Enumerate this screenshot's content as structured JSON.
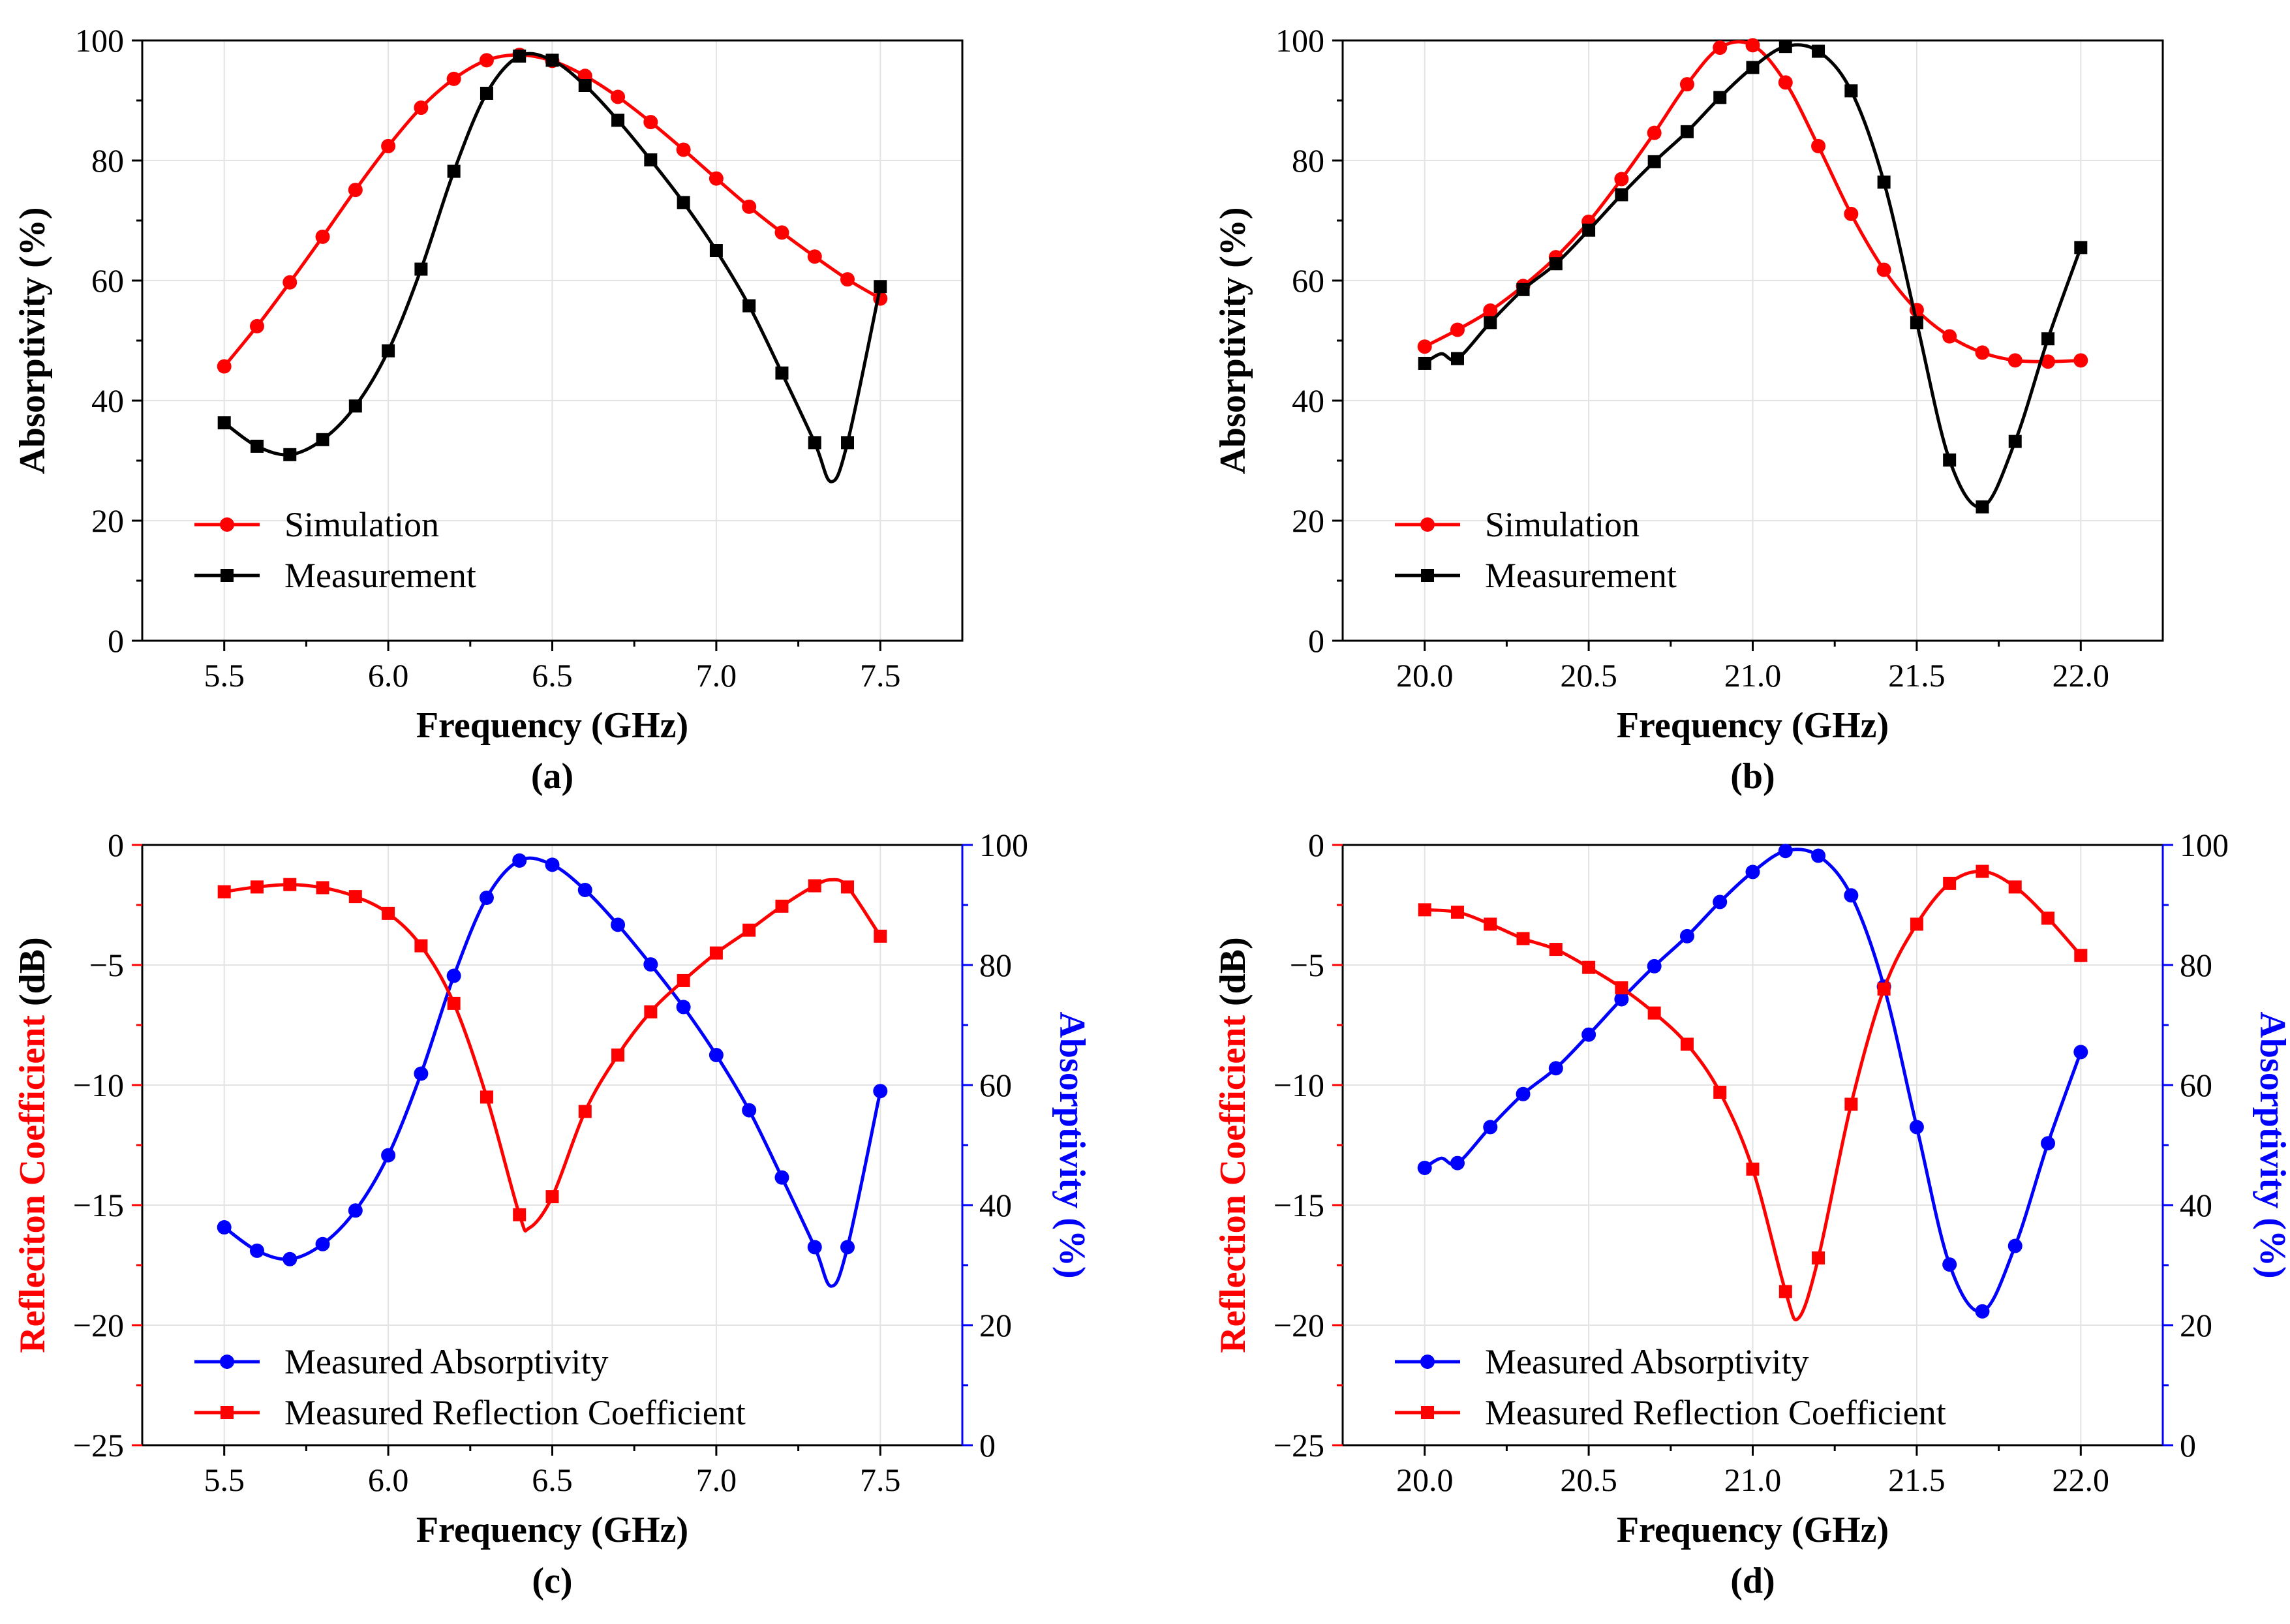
{
  "colors": {
    "red": "#ff0000",
    "black": "#000000",
    "blue": "#0000ff"
  },
  "chart_data": [
    {
      "type": "line",
      "caption": "(a)",
      "xlabel": "Frequency (GHz)",
      "ylabel": "Absorptivity (%)",
      "xlim": [
        5.25,
        7.75
      ],
      "ylim": [
        0,
        100
      ],
      "xticks": [
        5.5,
        6.0,
        6.5,
        7.0,
        7.5
      ],
      "xticklabels": [
        "5.5",
        "6.0",
        "6.5",
        "7.0",
        "7.5"
      ],
      "yticks": [
        0,
        20,
        40,
        60,
        80,
        100
      ],
      "yticklabels": [
        "0",
        "20",
        "40",
        "60",
        "80",
        "100"
      ],
      "grid": true,
      "legend": "bottom-left",
      "series": [
        {
          "name": "Simulation",
          "color": "#ff0000",
          "marker": "circle",
          "x": [
            5.5,
            5.6,
            5.7,
            5.8,
            5.9,
            6.0,
            6.1,
            6.2,
            6.3,
            6.4,
            6.5,
            6.6,
            6.7,
            6.8,
            6.9,
            7.0,
            7.1,
            7.2,
            7.3,
            7.4,
            7.5
          ],
          "y": [
            45.7,
            52.4,
            59.7,
            67.3,
            75.1,
            82.4,
            88.8,
            93.6,
            96.7,
            97.6,
            96.6,
            94.1,
            90.6,
            86.4,
            81.8,
            77.0,
            72.3,
            68.0,
            64.0,
            60.2,
            57.0
          ]
        },
        {
          "name": "Measurement",
          "color": "#000000",
          "marker": "square",
          "x": [
            5.5,
            5.6,
            5.7,
            5.8,
            5.9,
            6.0,
            6.1,
            6.2,
            6.3,
            6.4,
            6.5,
            6.6,
            6.7,
            6.8,
            6.9,
            7.0,
            7.1,
            7.2,
            7.3,
            7.35,
            7.4,
            7.5
          ],
          "y": [
            36.3,
            32.4,
            31.0,
            33.5,
            39.1,
            48.3,
            61.9,
            78.2,
            91.2,
            97.4,
            96.7,
            92.5,
            86.7,
            80.1,
            73.0,
            65.0,
            55.8,
            44.6,
            33.0,
            26.5,
            33.0,
            59.0
          ],
          "marked": [
            true,
            true,
            true,
            true,
            true,
            true,
            true,
            true,
            true,
            true,
            true,
            true,
            true,
            true,
            true,
            true,
            true,
            true,
            true,
            false,
            true,
            true
          ]
        }
      ]
    },
    {
      "type": "line",
      "caption": "(b)",
      "xlabel": "Frequency (GHz)",
      "ylabel": "Absorptivity (%)",
      "xlim": [
        19.75,
        22.25
      ],
      "ylim": [
        0,
        100
      ],
      "xticks": [
        20.0,
        20.5,
        21.0,
        21.5,
        22.0
      ],
      "xticklabels": [
        "20.0",
        "20.5",
        "21.0",
        "21.5",
        "22.0"
      ],
      "yticks": [
        0,
        20,
        40,
        60,
        80,
        100
      ],
      "yticklabels": [
        "0",
        "20",
        "40",
        "60",
        "80",
        "100"
      ],
      "grid": true,
      "legend": "bottom-left",
      "series": [
        {
          "name": "Simulation",
          "color": "#ff0000",
          "marker": "circle",
          "x": [
            20.0,
            20.1,
            20.2,
            20.3,
            20.4,
            20.5,
            20.6,
            20.7,
            20.8,
            20.9,
            21.0,
            21.1,
            21.2,
            21.3,
            21.4,
            21.5,
            21.6,
            21.7,
            21.8,
            21.9,
            22.0
          ],
          "y": [
            49.0,
            51.8,
            55.0,
            59.1,
            63.9,
            69.8,
            76.9,
            84.6,
            92.7,
            98.8,
            99.2,
            93.0,
            82.4,
            71.1,
            61.8,
            55.1,
            50.7,
            48.0,
            46.7,
            46.5,
            46.7
          ]
        },
        {
          "name": "Measurement",
          "color": "#000000",
          "marker": "square",
          "x": [
            20.0,
            20.05,
            20.1,
            20.2,
            20.3,
            20.4,
            20.5,
            20.6,
            20.7,
            20.8,
            20.9,
            21.0,
            21.1,
            21.2,
            21.3,
            21.4,
            21.5,
            21.6,
            21.7,
            21.8,
            21.9,
            22.0
          ],
          "y": [
            46.2,
            47.8,
            47.0,
            53.0,
            58.5,
            62.8,
            68.4,
            74.3,
            79.8,
            84.8,
            90.5,
            95.5,
            99.0,
            98.2,
            91.6,
            76.4,
            53.0,
            30.1,
            22.3,
            33.2,
            50.3,
            65.5
          ],
          "marked": [
            true,
            false,
            true,
            true,
            true,
            true,
            true,
            true,
            true,
            true,
            true,
            true,
            true,
            true,
            true,
            true,
            true,
            true,
            true,
            true,
            true,
            true
          ]
        }
      ]
    },
    {
      "type": "line",
      "caption": "(c)",
      "xlabel": "Frequency (GHz)",
      "ylabel_parts": [
        {
          "text": "Refleciton Coefficient",
          "color": "#ff0000"
        },
        {
          "text": " (dB)",
          "color": "#000000"
        }
      ],
      "ylabel_right_parts": [
        {
          "text": "Absorptivity",
          "color": "#0000ff"
        },
        {
          "text": " (%)",
          "color": "#0000ff"
        }
      ],
      "xlim": [
        5.25,
        7.75
      ],
      "ylim": [
        -25,
        0
      ],
      "ylim_right": [
        0,
        100
      ],
      "xticks": [
        5.5,
        6.0,
        6.5,
        7.0,
        7.5
      ],
      "xticklabels": [
        "5.5",
        "6.0",
        "6.5",
        "7.0",
        "7.5"
      ],
      "yticks": [
        -25,
        -20,
        -15,
        -10,
        -5,
        0
      ],
      "yticklabels": [
        "−25",
        "−20",
        "−15",
        "−10",
        "−5",
        "0"
      ],
      "yticks_right": [
        0,
        20,
        40,
        60,
        80,
        100
      ],
      "yticklabels_right": [
        "0",
        "20",
        "40",
        "60",
        "80",
        "100"
      ],
      "grid": true,
      "legend": "bottom-left",
      "series": [
        {
          "name": "Measured Absorptivity",
          "color": "#0000ff",
          "marker": "circle",
          "axis": "right",
          "x": [
            5.5,
            5.6,
            5.7,
            5.8,
            5.9,
            6.0,
            6.1,
            6.2,
            6.3,
            6.4,
            6.5,
            6.6,
            6.7,
            6.8,
            6.9,
            7.0,
            7.1,
            7.2,
            7.3,
            7.35,
            7.4,
            7.5
          ],
          "y": [
            36.3,
            32.4,
            31.0,
            33.5,
            39.1,
            48.3,
            61.9,
            78.2,
            91.2,
            97.4,
            96.7,
            92.5,
            86.7,
            80.1,
            73.0,
            65.0,
            55.8,
            44.6,
            33.0,
            26.5,
            33.0,
            59.0
          ],
          "marked": [
            true,
            true,
            true,
            true,
            true,
            true,
            true,
            true,
            true,
            true,
            true,
            true,
            true,
            true,
            true,
            true,
            true,
            true,
            true,
            false,
            true,
            true
          ]
        },
        {
          "name": "Measured Reflection Coefficient",
          "color": "#ff0000",
          "marker": "square",
          "axis": "left",
          "x": [
            5.5,
            5.6,
            5.7,
            5.8,
            5.9,
            6.0,
            6.1,
            6.2,
            6.3,
            6.4,
            6.43,
            6.5,
            6.6,
            6.7,
            6.8,
            6.9,
            7.0,
            7.1,
            7.2,
            7.3,
            7.35,
            7.4,
            7.5
          ],
          "y": [
            -1.95,
            -1.75,
            -1.65,
            -1.78,
            -2.15,
            -2.85,
            -4.2,
            -6.6,
            -10.5,
            -15.4,
            -15.95,
            -14.65,
            -11.1,
            -8.75,
            -6.95,
            -5.65,
            -4.5,
            -3.55,
            -2.55,
            -1.7,
            -1.45,
            -1.75,
            -3.8
          ],
          "marked": [
            true,
            true,
            true,
            true,
            true,
            true,
            true,
            true,
            true,
            true,
            false,
            true,
            true,
            true,
            true,
            true,
            true,
            true,
            true,
            true,
            false,
            true,
            true
          ]
        }
      ]
    },
    {
      "type": "line",
      "caption": "(d)",
      "xlabel": "Frequency (GHz)",
      "ylabel_parts": [
        {
          "text": "Reflection Coefficient",
          "color": "#ff0000"
        },
        {
          "text": " (dB)",
          "color": "#000000"
        }
      ],
      "ylabel_right_parts": [
        {
          "text": "Absorptivity",
          "color": "#0000ff"
        },
        {
          "text": " (%)",
          "color": "#0000ff"
        }
      ],
      "xlim": [
        19.75,
        22.25
      ],
      "ylim": [
        -25,
        0
      ],
      "ylim_right": [
        0,
        100
      ],
      "xticks": [
        20.0,
        20.5,
        21.0,
        21.5,
        22.0
      ],
      "xticklabels": [
        "20.0",
        "20.5",
        "21.0",
        "21.5",
        "22.0"
      ],
      "yticks": [
        -25,
        -20,
        -15,
        -10,
        -5,
        0
      ],
      "yticklabels": [
        "−25",
        "−20",
        "−15",
        "−10",
        "−5",
        "0"
      ],
      "yticks_right": [
        0,
        20,
        40,
        60,
        80,
        100
      ],
      "yticklabels_right": [
        "0",
        "20",
        "40",
        "60",
        "80",
        "100"
      ],
      "grid": true,
      "legend": "bottom-left",
      "series": [
        {
          "name": "Measured Absorptivity",
          "color": "#0000ff",
          "marker": "circle",
          "axis": "right",
          "x": [
            20.0,
            20.05,
            20.1,
            20.2,
            20.3,
            20.4,
            20.5,
            20.6,
            20.7,
            20.8,
            20.9,
            21.0,
            21.1,
            21.2,
            21.3,
            21.4,
            21.5,
            21.6,
            21.7,
            21.8,
            21.9,
            22.0
          ],
          "y": [
            46.2,
            47.8,
            47.0,
            53.0,
            58.5,
            62.8,
            68.4,
            74.3,
            79.8,
            84.8,
            90.5,
            95.5,
            99.0,
            98.2,
            91.6,
            76.4,
            53.0,
            30.1,
            22.3,
            33.2,
            50.3,
            65.5
          ],
          "marked": [
            true,
            false,
            true,
            true,
            true,
            true,
            true,
            true,
            true,
            true,
            true,
            true,
            true,
            true,
            true,
            true,
            true,
            true,
            true,
            true,
            true,
            true
          ]
        },
        {
          "name": "Measured Reflection Coefficient",
          "color": "#ff0000",
          "marker": "square",
          "axis": "left",
          "x": [
            20.0,
            20.1,
            20.2,
            20.3,
            20.4,
            20.5,
            20.6,
            20.7,
            20.8,
            20.9,
            21.0,
            21.1,
            21.14,
            21.2,
            21.3,
            21.4,
            21.5,
            21.6,
            21.7,
            21.8,
            21.9,
            22.0
          ],
          "y": [
            -2.7,
            -2.8,
            -3.3,
            -3.9,
            -4.35,
            -5.1,
            -5.95,
            -7.0,
            -8.3,
            -10.3,
            -13.5,
            -18.6,
            -19.7,
            -17.2,
            -10.8,
            -6.0,
            -3.3,
            -1.6,
            -1.1,
            -1.75,
            -3.05,
            -4.6
          ],
          "marked": [
            true,
            true,
            true,
            true,
            true,
            true,
            true,
            true,
            true,
            true,
            true,
            true,
            false,
            true,
            true,
            true,
            true,
            true,
            true,
            true,
            true,
            true
          ]
        }
      ]
    }
  ]
}
